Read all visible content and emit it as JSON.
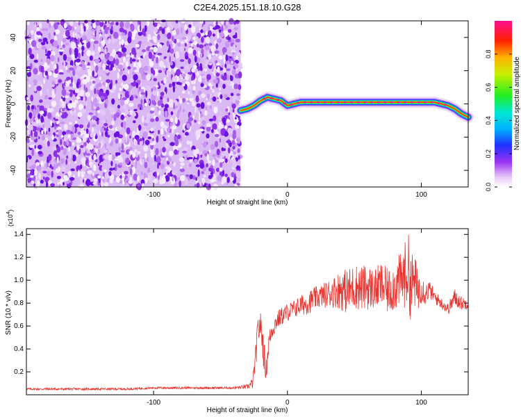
{
  "title": "C2E4.2025.151.18.10.G28",
  "colors": {
    "snr_line": "#e8332f",
    "spectrogram_noise": "#7a22e6",
    "frame": "#000000"
  },
  "chart_data": [
    {
      "id": "spectrogram",
      "type": "heatmap",
      "xlabel": "Height of straight line (km)",
      "ylabel": "Frequency (Hz)",
      "xlim": [
        -195,
        135
      ],
      "ylim": [
        -50,
        50
      ],
      "xticks": [
        -100,
        0,
        100
      ],
      "yticks": [
        -40,
        -20,
        0,
        20,
        40
      ],
      "colorbar": {
        "label": "Normalized spectral amplitude",
        "range": [
          0,
          1
        ],
        "ticks": [
          "0.0",
          "0.2",
          "0.4",
          "0.6",
          "0.8"
        ],
        "colormap": "rainbow (white-purple-blue-cyan-green-yellow-red-magenta)"
      },
      "noise_region_x": [
        -195,
        -35
      ],
      "signal_trace": {
        "x": [
          -35,
          -30,
          -25,
          -20,
          -15,
          -10,
          -5,
          0,
          5,
          10,
          20,
          40,
          60,
          80,
          100,
          110,
          115,
          120,
          125,
          130,
          135
        ],
        "freq": [
          -4,
          -3,
          -1,
          2,
          4,
          3,
          2,
          -1,
          0,
          1,
          1,
          1,
          1,
          1,
          1,
          1,
          0,
          -1,
          -3,
          -6,
          -8
        ],
        "amplitude": [
          0.5,
          0.6,
          0.7,
          0.85,
          0.9,
          0.9,
          0.85,
          0.95,
          1.0,
          1.0,
          1.0,
          1.0,
          1.0,
          1.0,
          1.0,
          0.95,
          0.9,
          0.85,
          0.8,
          0.7,
          0.6
        ]
      }
    },
    {
      "id": "snr",
      "type": "line",
      "xlabel": "Height of straight line (km)",
      "ylabel": "SNR (10 * v/v)",
      "y_multiplier_label": "(x10",
      "y_multiplier_exp": "4",
      "y_multiplier_close": ")",
      "xlim": [
        -195,
        135
      ],
      "ylim": [
        0,
        1.45
      ],
      "xticks": [
        -100,
        0,
        100
      ],
      "yticks": [
        0.2,
        0.4,
        0.6,
        0.8,
        1.0,
        1.2,
        1.4
      ],
      "series": [
        {
          "color": "#e8332f",
          "x": [
            -195,
            -180,
            -160,
            -140,
            -120,
            -100,
            -80,
            -60,
            -40,
            -30,
            -26,
            -24,
            -22,
            -20,
            -18,
            -16,
            -14,
            -12,
            -10,
            -8,
            -5,
            0,
            5,
            10,
            15,
            20,
            25,
            30,
            35,
            40,
            45,
            50,
            55,
            60,
            65,
            70,
            75,
            80,
            85,
            88,
            90,
            92,
            95,
            97,
            100,
            103,
            106,
            110,
            115,
            120,
            125,
            130,
            135
          ],
          "y": [
            0.05,
            0.05,
            0.05,
            0.05,
            0.05,
            0.06,
            0.06,
            0.06,
            0.06,
            0.07,
            0.1,
            0.3,
            0.55,
            0.62,
            0.4,
            0.2,
            0.45,
            0.55,
            0.6,
            0.65,
            0.68,
            0.72,
            0.75,
            0.78,
            0.8,
            0.84,
            0.86,
            0.88,
            0.9,
            0.92,
            0.9,
            0.95,
            0.93,
            0.94,
            0.92,
            0.96,
            0.9,
            0.95,
            1.0,
            1.05,
            1.1,
            0.95,
            1.0,
            0.9,
            0.95,
            0.88,
            0.92,
            0.85,
            0.8,
            0.75,
            0.85,
            0.8,
            0.8
          ],
          "noise": [
            0.01,
            0.01,
            0.01,
            0.01,
            0.01,
            0.01,
            0.01,
            0.01,
            0.01,
            0.02,
            0.05,
            0.1,
            0.15,
            0.1,
            0.15,
            0.1,
            0.1,
            0.08,
            0.08,
            0.08,
            0.08,
            0.08,
            0.08,
            0.09,
            0.1,
            0.1,
            0.1,
            0.12,
            0.14,
            0.18,
            0.2,
            0.2,
            0.2,
            0.2,
            0.18,
            0.2,
            0.2,
            0.22,
            0.25,
            0.3,
            0.35,
            0.3,
            0.25,
            0.2,
            0.15,
            0.1,
            0.08,
            0.06,
            0.05,
            0.05,
            0.08,
            0.06,
            0.05
          ]
        }
      ]
    }
  ]
}
